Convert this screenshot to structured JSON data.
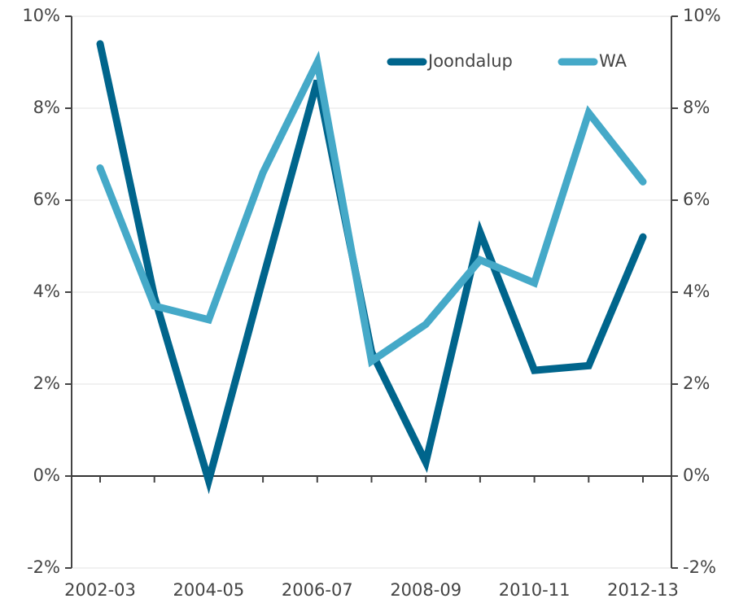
{
  "chart_data": {
    "type": "line",
    "categories": [
      "2002-03",
      null,
      "2004-05",
      null,
      "2006-07",
      null,
      "2008-09",
      null,
      "2010-11",
      null,
      "2012-13"
    ],
    "series": [
      {
        "name": "Joondalup",
        "color": "#00658c",
        "values": [
          9.4,
          3.9,
          -0.1,
          4.3,
          8.6,
          2.7,
          0.3,
          5.3,
          2.3,
          2.4,
          5.2
        ]
      },
      {
        "name": "WA",
        "color": "#45a9c8",
        "values": [
          6.7,
          3.7,
          3.4,
          6.6,
          9.0,
          2.5,
          3.3,
          4.7,
          4.2,
          7.9,
          6.4
        ]
      }
    ],
    "ylim": [
      -2,
      10
    ],
    "yticks": [
      {
        "value": -2,
        "label": "-2%"
      },
      {
        "value": 0,
        "label": "0%"
      },
      {
        "value": 2,
        "label": "2%"
      },
      {
        "value": 4,
        "label": "4%"
      },
      {
        "value": 6,
        "label": "6%"
      },
      {
        "value": 8,
        "label": "8%"
      },
      {
        "value": 10,
        "label": "10%"
      }
    ],
    "grid": true,
    "legend": "top-right"
  }
}
